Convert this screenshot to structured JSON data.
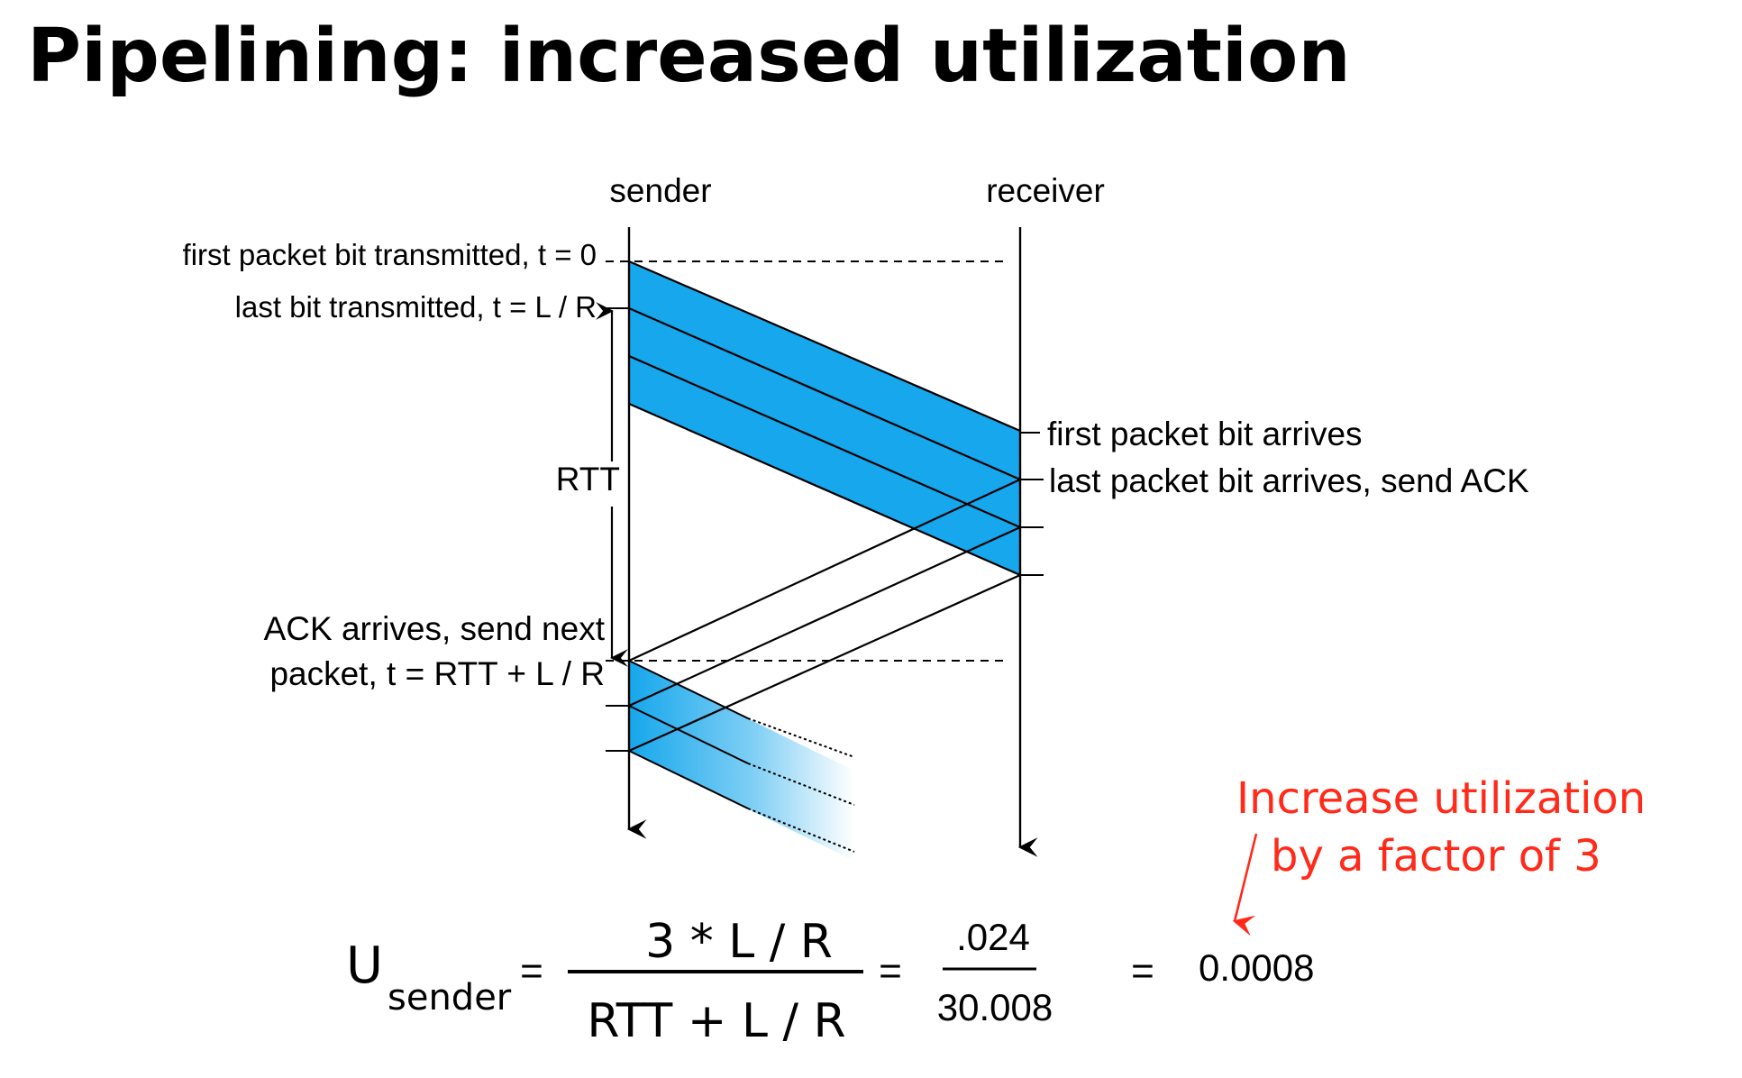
{
  "title": "Pipelining: increased utilization",
  "diagram": {
    "sender_label": "sender",
    "receiver_label": "receiver",
    "left_labels": {
      "first_bit_tx": "first packet bit transmitted, t = 0",
      "last_bit_tx": "last bit transmitted, t = L / R",
      "rtt": "RTT",
      "ack_arrives_line1": "ACK arrives, send next",
      "ack_arrives_line2": "packet, t = RTT + L / R"
    },
    "right_labels": {
      "first_bit_arrives": "first packet bit arrives",
      "last_bit_arrives": "last packet bit arrives, send ACK"
    },
    "packet_count": 3,
    "colors": {
      "packet_fill": "#16a7ec",
      "annotation": "#ff2a1a",
      "line": "#000000"
    }
  },
  "annotation": {
    "line1": "Increase utilization",
    "line2": "by a factor of 3"
  },
  "formula": {
    "u": "U",
    "subscript": "sender",
    "numerator": "3 * L / R",
    "denominator": "RTT + L / R",
    "value_numerator": ".024",
    "value_denominator": "30.008",
    "result": "0.0008",
    "equals": "="
  }
}
